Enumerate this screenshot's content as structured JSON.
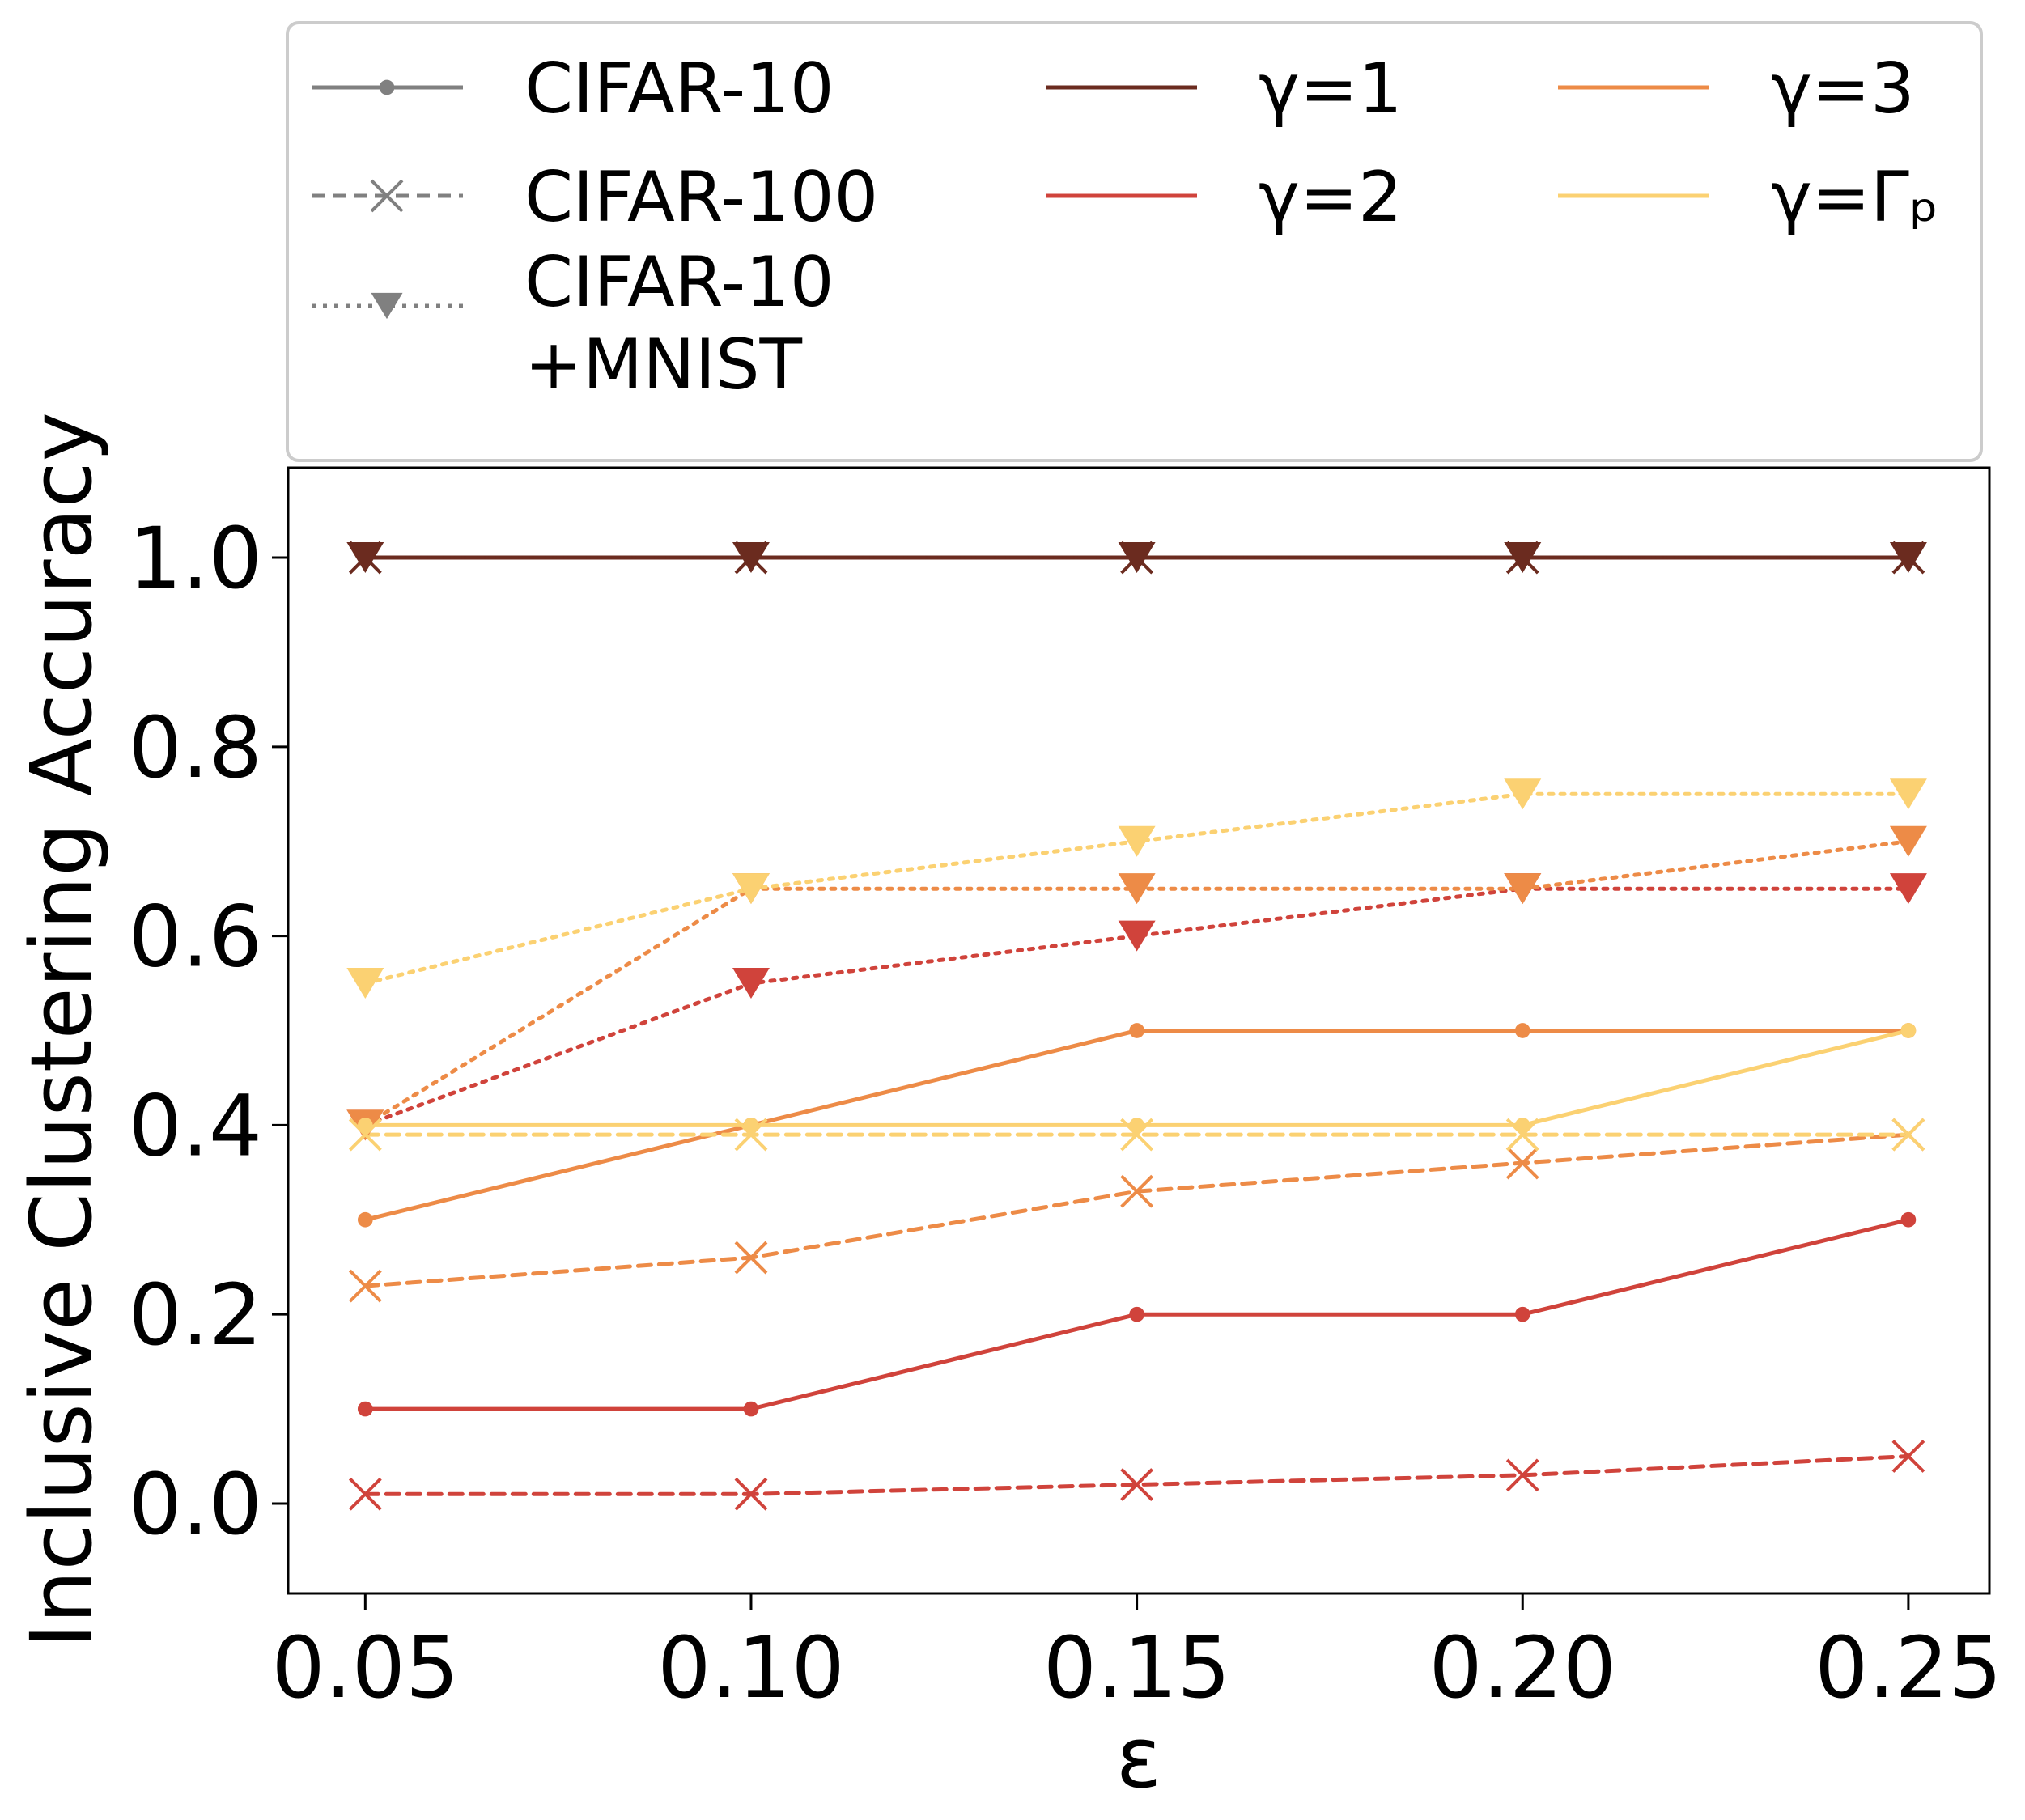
{
  "chart_data": {
    "type": "line",
    "xlabel": "ε",
    "ylabel": "Inclusive Clustering Accuracy",
    "x": [
      0.05,
      0.1,
      0.15,
      0.2,
      0.25
    ],
    "x_tick_labels": [
      "0.05",
      "0.10",
      "0.15",
      "0.20",
      "0.25"
    ],
    "y_ticks": [
      0.0,
      0.2,
      0.4,
      0.6,
      0.8,
      1.0
    ],
    "y_tick_labels": [
      "0.0",
      "0.2",
      "0.4",
      "0.6",
      "0.8",
      "1.0"
    ],
    "xlim": [
      0.04,
      0.2605
    ],
    "ylim": [
      -0.095,
      1.095
    ],
    "grid": false,
    "legend": {
      "placement": "top",
      "datasets": [
        {
          "label": "CIFAR-10",
          "style": "solid",
          "marker": "dot"
        },
        {
          "label": "CIFAR-100",
          "style": "dashed",
          "marker": "x"
        },
        {
          "label_lines": [
            "CIFAR-10",
            "+MNIST"
          ],
          "style": "dotted",
          "marker": "triangle-down"
        }
      ],
      "gammas": [
        {
          "label": "γ=1",
          "color": "#6b2b1f"
        },
        {
          "label": "γ=2",
          "color": "#d0433b"
        },
        {
          "label": "γ=3",
          "color": "#ed8b47"
        },
        {
          "label": "γ=Γₚ",
          "color": "#fbd172"
        }
      ],
      "marker_color": "#808080"
    },
    "series": [
      {
        "dataset": "CIFAR-10",
        "gamma": "γ=1",
        "values": [
          1.0,
          1.0,
          1.0,
          1.0,
          1.0
        ]
      },
      {
        "dataset": "CIFAR-100",
        "gamma": "γ=1",
        "values": [
          1.0,
          1.0,
          1.0,
          1.0,
          1.0
        ]
      },
      {
        "dataset": "CIFAR-10+MNIST",
        "gamma": "γ=1",
        "values": [
          1.0,
          1.0,
          1.0,
          1.0,
          1.0
        ]
      },
      {
        "dataset": "CIFAR-10",
        "gamma": "γ=2",
        "values": [
          0.1,
          0.1,
          0.2,
          0.2,
          0.3
        ]
      },
      {
        "dataset": "CIFAR-100",
        "gamma": "γ=2",
        "values": [
          0.01,
          0.01,
          0.02,
          0.03,
          0.05
        ]
      },
      {
        "dataset": "CIFAR-10+MNIST",
        "gamma": "γ=2",
        "values": [
          0.4,
          0.55,
          0.6,
          0.65,
          0.65
        ]
      },
      {
        "dataset": "CIFAR-10",
        "gamma": "γ=3",
        "values": [
          0.3,
          0.4,
          0.5,
          0.5,
          0.5
        ]
      },
      {
        "dataset": "CIFAR-100",
        "gamma": "γ=3",
        "values": [
          0.23,
          0.26,
          0.33,
          0.36,
          0.39
        ]
      },
      {
        "dataset": "CIFAR-10+MNIST",
        "gamma": "γ=3",
        "values": [
          0.4,
          0.65,
          0.65,
          0.65,
          0.7
        ]
      },
      {
        "dataset": "CIFAR-10",
        "gamma": "γ=Γₚ",
        "values": [
          0.4,
          0.4,
          0.4,
          0.4,
          0.5
        ]
      },
      {
        "dataset": "CIFAR-100",
        "gamma": "γ=Γₚ",
        "values": [
          0.39,
          0.39,
          0.39,
          0.39,
          0.39
        ]
      },
      {
        "dataset": "CIFAR-10+MNIST",
        "gamma": "γ=Γₚ",
        "values": [
          0.55,
          0.65,
          0.7,
          0.75,
          0.75
        ]
      }
    ]
  }
}
